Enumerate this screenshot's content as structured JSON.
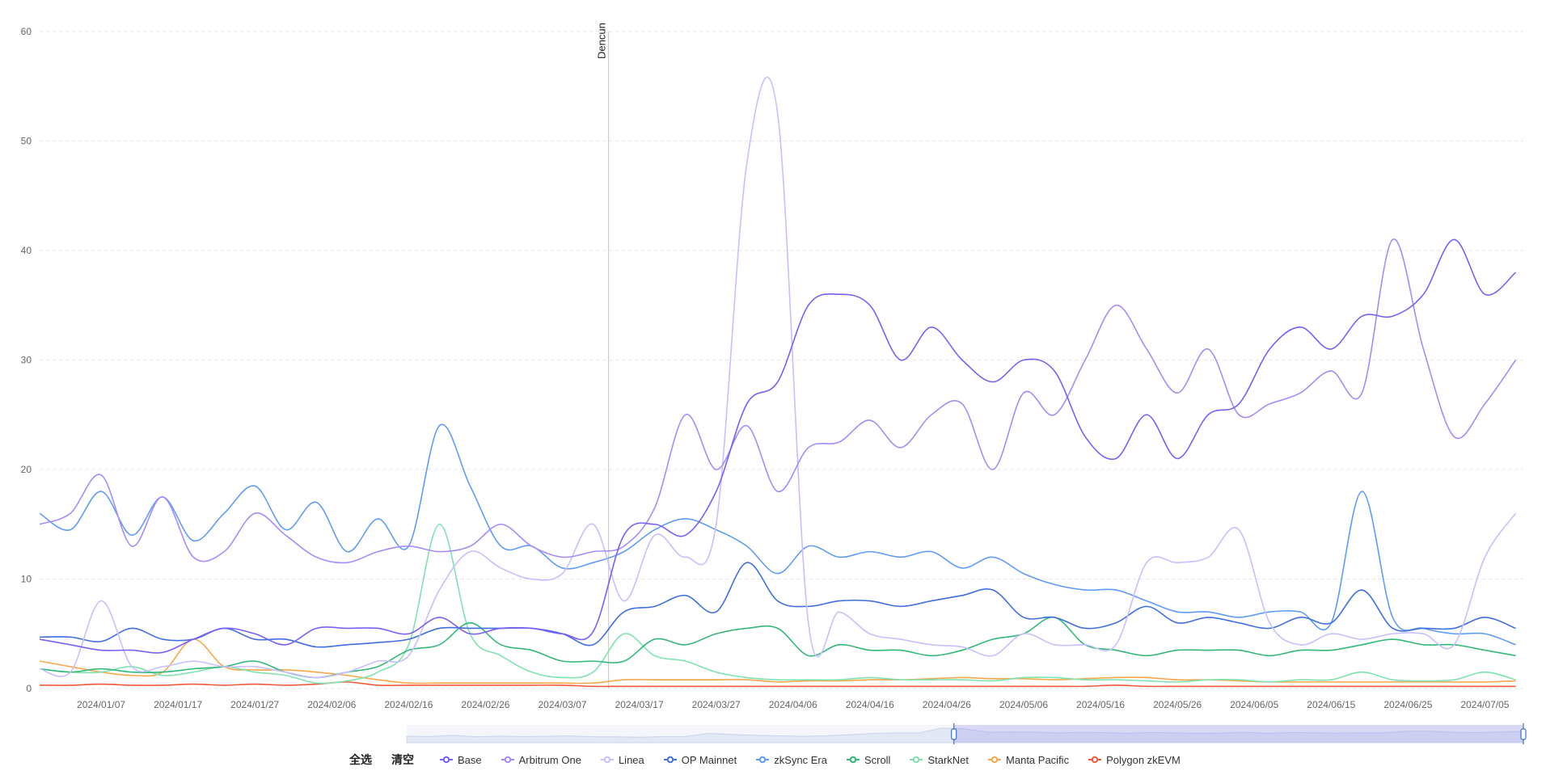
{
  "legend_actions": {
    "select_all": "全选",
    "clear": "清空"
  },
  "chart_data": {
    "type": "line",
    "title": "",
    "xlabel": "",
    "ylabel": "",
    "ylim": [
      0,
      60
    ],
    "yticks": [
      0,
      10,
      20,
      30,
      40,
      50,
      60
    ],
    "grid": true,
    "legend_position": "bottom",
    "x_range": [
      "2023/12/30",
      "2024/07/10"
    ],
    "xtick_labels": [
      "2024/01/07",
      "2024/01/17",
      "2024/01/27",
      "2024/02/06",
      "2024/02/16",
      "2024/02/26",
      "2024/03/07",
      "2024/03/17",
      "2024/03/27",
      "2024/04/06",
      "2024/04/16",
      "2024/04/26",
      "2024/05/06",
      "2024/05/16",
      "2024/05/26",
      "2024/06/05",
      "2024/06/15",
      "2024/06/25",
      "2024/07/05"
    ],
    "annotations": [
      {
        "label": "Dencun",
        "x": "2024/03/13"
      }
    ],
    "x": [
      "2023/12/30",
      "2024/01/03",
      "2024/01/07",
      "2024/01/11",
      "2024/01/15",
      "2024/01/19",
      "2024/01/23",
      "2024/01/27",
      "2024/01/31",
      "2024/02/04",
      "2024/02/08",
      "2024/02/12",
      "2024/02/16",
      "2024/02/20",
      "2024/02/24",
      "2024/02/28",
      "2024/03/03",
      "2024/03/07",
      "2024/03/11",
      "2024/03/15",
      "2024/03/19",
      "2024/03/23",
      "2024/03/27",
      "2024/03/31",
      "2024/04/04",
      "2024/04/08",
      "2024/04/12",
      "2024/04/16",
      "2024/04/20",
      "2024/04/24",
      "2024/04/28",
      "2024/05/02",
      "2024/05/06",
      "2024/05/10",
      "2024/05/14",
      "2024/05/18",
      "2024/05/22",
      "2024/05/26",
      "2024/05/30",
      "2024/06/03",
      "2024/06/07",
      "2024/06/11",
      "2024/06/15",
      "2024/06/19",
      "2024/06/23",
      "2024/06/27",
      "2024/07/01",
      "2024/07/05",
      "2024/07/09"
    ],
    "series": [
      {
        "name": "Base",
        "color": "#7b5ff5",
        "values": [
          4.5,
          4,
          3.5,
          3.5,
          3.3,
          4.5,
          5.5,
          5,
          4,
          5.5,
          5.5,
          5.5,
          5,
          6.5,
          5,
          5.5,
          5.5,
          5,
          5.2,
          14,
          15,
          14,
          18,
          26,
          28,
          35,
          36,
          35,
          30,
          33,
          30,
          28,
          30,
          29,
          23,
          21,
          25,
          21,
          25,
          26,
          31,
          33,
          31,
          34,
          34,
          36,
          41,
          36,
          38
        ]
      },
      {
        "name": "Arbitrum One",
        "color": "#a78bfa",
        "values": [
          15,
          16,
          19.5,
          13,
          17.5,
          12,
          12.5,
          16,
          14,
          12,
          11.5,
          12.5,
          13,
          12.5,
          13,
          15,
          13,
          12,
          12.5,
          13,
          16.5,
          25,
          20,
          24,
          18,
          22,
          22.5,
          24.5,
          22,
          25,
          26,
          20,
          27,
          25,
          30,
          35,
          31,
          27,
          31,
          25,
          26,
          27,
          29,
          27,
          41,
          31,
          23,
          26,
          30
        ]
      },
      {
        "name": "Linea",
        "color": "#c8bfff",
        "values": [
          1.8,
          1.5,
          8,
          2,
          2,
          2.5,
          2,
          2,
          1.5,
          1,
          1.5,
          2.5,
          3,
          9,
          12.5,
          11,
          10,
          10.5,
          15,
          8,
          14,
          12,
          15,
          48,
          52.5,
          6,
          7,
          5,
          4.5,
          4,
          3.8,
          3,
          5,
          4,
          4,
          4,
          11.5,
          11.5,
          12,
          14.5,
          6,
          4,
          5,
          4.5,
          5,
          5,
          4,
          12,
          16
        ]
      },
      {
        "name": "OP Mainnet",
        "color": "#3f6fe0",
        "values": [
          4.7,
          4.7,
          4.3,
          5.5,
          4.5,
          4.5,
          5.5,
          4.5,
          4.5,
          3.8,
          4,
          4.2,
          4.5,
          5.5,
          5.5,
          5.5,
          5.5,
          5,
          4,
          7,
          7.5,
          8.5,
          7,
          11.5,
          8,
          7.5,
          8,
          8,
          7.5,
          8,
          8.5,
          9,
          6.5,
          6.5,
          5.5,
          6,
          7.5,
          6,
          6.5,
          6,
          5.5,
          6.5,
          6,
          9,
          5.5,
          5.5,
          5.5,
          6.5,
          5.5
        ]
      },
      {
        "name": "zkSync Era",
        "color": "#5f9cf7",
        "values": [
          16,
          14.5,
          18,
          14,
          17.5,
          13.5,
          16,
          18.5,
          14.5,
          17,
          12.5,
          15.5,
          13,
          24,
          18.5,
          13,
          13,
          11,
          11.5,
          12.5,
          14.5,
          15.5,
          14.5,
          13,
          10.5,
          13,
          12,
          12.5,
          12,
          12.5,
          11,
          12,
          10.5,
          9.5,
          9,
          9,
          8,
          7,
          7,
          6.5,
          7,
          7,
          6,
          18,
          6.5,
          5.5,
          5,
          5,
          4
        ]
      },
      {
        "name": "Scroll",
        "color": "#33b879",
        "values": [
          1.8,
          1.5,
          1.8,
          1.5,
          1.5,
          1.8,
          2,
          2.5,
          1.5,
          1,
          1.5,
          2,
          3.5,
          4,
          6,
          4,
          3.5,
          2.5,
          2.5,
          2.5,
          4.5,
          4,
          5,
          5.5,
          5.5,
          3,
          4,
          3.5,
          3.5,
          3,
          3.5,
          4.5,
          5,
          6.5,
          4,
          3.5,
          3,
          3.5,
          3.5,
          3.5,
          3,
          3.5,
          3.5,
          4,
          4.5,
          4,
          4,
          3.5,
          3
        ]
      },
      {
        "name": "StarkNet",
        "color": "#7fe3b0",
        "values": [
          1.8,
          1.5,
          1.5,
          2,
          1.2,
          1.5,
          2,
          1.5,
          1.2,
          0.5,
          0.7,
          1.5,
          4,
          15,
          5,
          3,
          1.5,
          1,
          1.5,
          5,
          3,
          2.5,
          1.5,
          1,
          0.8,
          0.8,
          0.8,
          1,
          0.8,
          0.8,
          0.8,
          0.7,
          1,
          1,
          0.8,
          0.8,
          0.7,
          0.6,
          0.8,
          0.8,
          0.6,
          0.8,
          0.8,
          1.5,
          0.8,
          0.7,
          0.8,
          1.5,
          0.8
        ]
      },
      {
        "name": "Manta Pacific",
        "color": "#f8a84a",
        "values": [
          2.5,
          2,
          1.5,
          1.2,
          1.5,
          4.5,
          2,
          1.7,
          1.7,
          1.5,
          1.2,
          0.8,
          0.5,
          0.5,
          0.5,
          0.5,
          0.5,
          0.5,
          0.5,
          0.8,
          0.8,
          0.8,
          0.8,
          0.8,
          0.6,
          0.7,
          0.7,
          0.8,
          0.8,
          0.9,
          1,
          0.9,
          0.9,
          0.8,
          0.9,
          1,
          1,
          0.8,
          0.8,
          0.7,
          0.6,
          0.6,
          0.6,
          0.6,
          0.6,
          0.6,
          0.6,
          0.6,
          0.7
        ]
      },
      {
        "name": "Polygon zkEVM",
        "color": "#f05a3a",
        "values": [
          0.3,
          0.3,
          0.4,
          0.3,
          0.3,
          0.4,
          0.3,
          0.4,
          0.3,
          0.4,
          0.6,
          0.3,
          0.3,
          0.3,
          0.3,
          0.3,
          0.3,
          0.3,
          0.2,
          0.2,
          0.2,
          0.2,
          0.2,
          0.2,
          0.2,
          0.2,
          0.2,
          0.2,
          0.2,
          0.2,
          0.2,
          0.2,
          0.2,
          0.2,
          0.2,
          0.3,
          0.2,
          0.2,
          0.2,
          0.2,
          0.2,
          0.2,
          0.2,
          0.2,
          0.2,
          0.2,
          0.2,
          0.2,
          0.2
        ]
      }
    ],
    "data_zoom": {
      "start_fraction": 0.49,
      "end_fraction": 1.0
    }
  }
}
